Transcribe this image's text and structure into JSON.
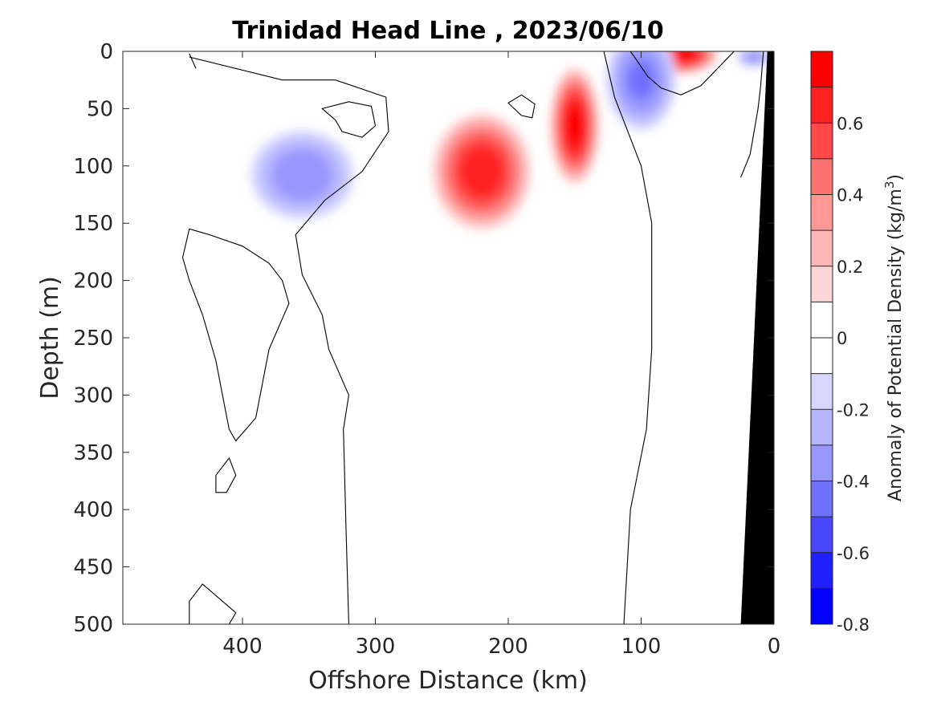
{
  "chart_data": {
    "type": "heatmap",
    "title": "Trinidad Head Line , 2023/06/10",
    "xlabel": "Offshore Distance (km)",
    "ylabel": "Depth (m)",
    "x_range": [
      490,
      0
    ],
    "y_range": [
      0,
      500
    ],
    "x_ticks": [
      400,
      300,
      200,
      100,
      0
    ],
    "y_ticks": [
      0,
      50,
      100,
      150,
      200,
      250,
      300,
      350,
      400,
      450,
      500
    ],
    "grid": false,
    "colorbar": {
      "label": "Anomaly of Potential Density (kg/m",
      "label_superscript": "3",
      "label_suffix": ")",
      "min": -0.8,
      "max": 0.8,
      "step": 0.1,
      "ticks": [
        -0.8,
        -0.6,
        -0.4,
        -0.2,
        0,
        0.2,
        0.4,
        0.6
      ],
      "tick_labels": [
        "-0.8",
        "-0.6",
        "-0.4",
        "-0.2",
        "0",
        "0.2",
        "0.4",
        "0.6"
      ],
      "colors": [
        "#0000ff",
        "#2020ff",
        "#4848ff",
        "#7070ff",
        "#9797ff",
        "#b6b6ff",
        "#d6d6ff",
        "#ffffff",
        "#ffffff",
        "#ffd6d6",
        "#ffb6b6",
        "#ff9797",
        "#ff7070",
        "#ff4848",
        "#ff2020",
        "#ff0000"
      ]
    },
    "anomaly_features": [
      {
        "type": "positive",
        "x": 150,
        "y": 65,
        "rx": 20,
        "ry": 55,
        "peak": 0.78
      },
      {
        "type": "positive",
        "x": 220,
        "y": 105,
        "rx": 40,
        "ry": 55,
        "peak": 0.72
      },
      {
        "type": "positive",
        "x": 70,
        "y": 3,
        "rx": 30,
        "ry": 18,
        "peak": 0.8
      },
      {
        "type": "negative",
        "x": 100,
        "y": 25,
        "rx": 30,
        "ry": 50,
        "peak": -0.45
      },
      {
        "type": "negative",
        "x": 355,
        "y": 108,
        "rx": 45,
        "ry": 45,
        "peak": -0.4
      },
      {
        "type": "negative",
        "x": 15,
        "y": 5,
        "rx": 15,
        "ry": 10,
        "peak": -0.4
      }
    ],
    "zero_contour_lines": [
      [
        [
          440,
          2
        ],
        [
          435,
          15
        ]
      ],
      [
        [
          320,
          500
        ],
        [
          322,
          420
        ],
        [
          324,
          330
        ],
        [
          320,
          300
        ],
        [
          335,
          260
        ],
        [
          340,
          230
        ],
        [
          355,
          195
        ],
        [
          360,
          160
        ],
        [
          338,
          130
        ],
        [
          310,
          105
        ],
        [
          290,
          70
        ],
        [
          292,
          40
        ],
        [
          330,
          25
        ],
        [
          370,
          25
        ],
        [
          440,
          5
        ]
      ],
      [
        [
          113,
          500
        ],
        [
          108,
          400
        ],
        [
          96,
          330
        ],
        [
          92,
          260
        ],
        [
          92,
          150
        ],
        [
          100,
          100
        ],
        [
          120,
          40
        ],
        [
          128,
          0
        ]
      ],
      [
        [
          30,
          0
        ],
        [
          40,
          12
        ],
        [
          55,
          30
        ],
        [
          70,
          38
        ],
        [
          85,
          32
        ],
        [
          95,
          22
        ],
        [
          105,
          5
        ],
        [
          108,
          0
        ]
      ],
      [
        [
          25,
          110
        ],
        [
          18,
          90
        ],
        [
          15,
          70
        ],
        [
          12,
          50
        ],
        [
          10,
          30
        ],
        [
          8,
          0
        ]
      ]
    ],
    "zero_contour_loops": [
      [
        [
          440,
          155
        ],
        [
          445,
          180
        ],
        [
          440,
          200
        ],
        [
          430,
          230
        ],
        [
          420,
          270
        ],
        [
          415,
          300
        ],
        [
          410,
          330
        ],
        [
          405,
          340
        ],
        [
          390,
          320
        ],
        [
          385,
          290
        ],
        [
          380,
          260
        ],
        [
          365,
          220
        ],
        [
          370,
          200
        ],
        [
          380,
          185
        ],
        [
          400,
          170
        ],
        [
          425,
          160
        ]
      ],
      [
        [
          410,
          355
        ],
        [
          420,
          370
        ],
        [
          420,
          385
        ],
        [
          412,
          385
        ],
        [
          405,
          370
        ]
      ],
      [
        [
          430,
          465
        ],
        [
          440,
          480
        ],
        [
          440,
          500
        ],
        [
          410,
          500
        ],
        [
          405,
          490
        ],
        [
          415,
          480
        ],
        [
          425,
          470
        ]
      ],
      [
        [
          330,
          60
        ],
        [
          340,
          50
        ],
        [
          320,
          44
        ],
        [
          303,
          48
        ],
        [
          300,
          65
        ],
        [
          310,
          75
        ],
        [
          325,
          70
        ]
      ],
      [
        [
          190,
          56
        ],
        [
          200,
          45
        ],
        [
          190,
          38
        ],
        [
          180,
          46
        ],
        [
          182,
          58
        ]
      ]
    ],
    "bathymetry_polygon": [
      [
        0,
        0
      ],
      [
        5,
        0
      ],
      [
        25,
        500
      ],
      [
        0,
        500
      ]
    ]
  }
}
